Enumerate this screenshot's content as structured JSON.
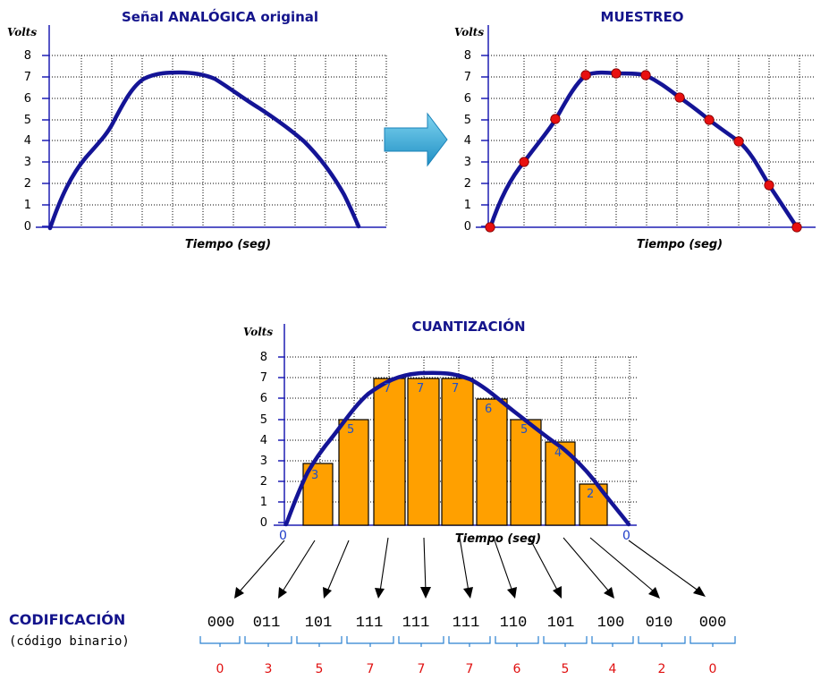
{
  "panels": {
    "analog": {
      "title": "Señal ANALÓGICA original",
      "ylabel": "Volts",
      "xlabel": "Tiempo (seg)"
    },
    "sampling": {
      "title": "MUESTREO",
      "ylabel": "Volts",
      "xlabel": "Tiempo (seg)"
    },
    "quantization": {
      "title": "CUANTIZACIÓN",
      "ylabel": "Volts",
      "xlabel": "Tiempo (seg)",
      "start_label": "0",
      "end_label": "0"
    }
  },
  "y_ticks": [
    "0",
    "1",
    "2",
    "3",
    "4",
    "5",
    "6",
    "7",
    "8"
  ],
  "samples": [
    0,
    3,
    5,
    7,
    7.1,
    7,
    6,
    5,
    4,
    2,
    0
  ],
  "quantized": [
    3,
    5,
    7,
    7,
    7,
    6,
    5,
    4,
    2
  ],
  "quantized_labels": [
    "3",
    "5",
    "7",
    "7",
    "7",
    "6",
    "5",
    "4",
    "2"
  ],
  "coding": {
    "title": "CODIFICACIÓN",
    "subtitle": "(código binario)",
    "codes": [
      "000",
      "011",
      "101",
      "111",
      "111",
      "111",
      "110",
      "101",
      "100",
      "010",
      "000"
    ],
    "decimals": [
      "0",
      "3",
      "5",
      "7",
      "7",
      "7",
      "6",
      "5",
      "4",
      "2",
      "0"
    ]
  },
  "colors": {
    "title": "#14148c",
    "curve": "#141496",
    "sample_dot": "#e81010",
    "bar": "#ffa000",
    "arrow": "#2aa8d8",
    "decimal": "#e01010"
  },
  "icons": {
    "transition": "right-arrow-icon"
  }
}
